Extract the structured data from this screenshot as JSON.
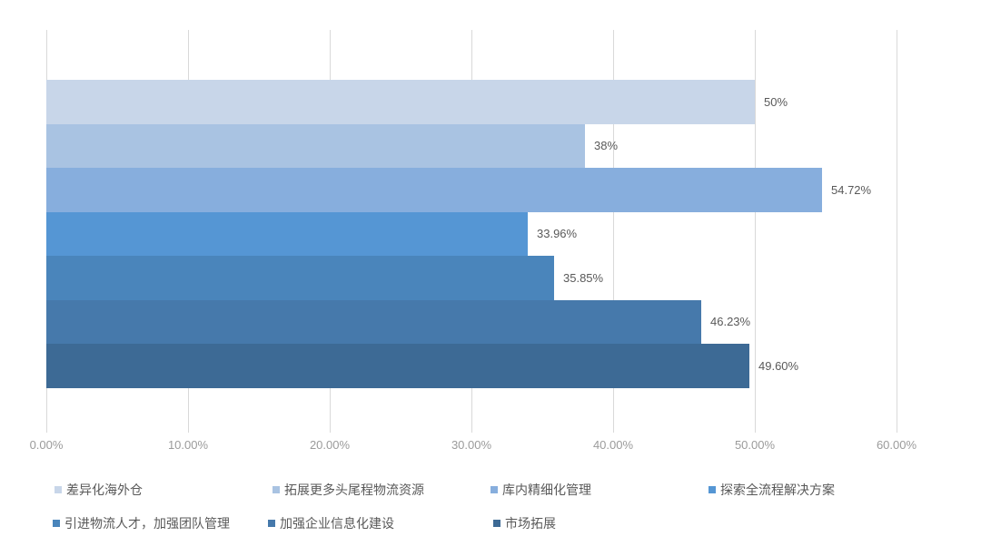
{
  "chart_data": {
    "type": "bar",
    "orientation": "horizontal",
    "title": "",
    "xlabel": "",
    "ylabel": "",
    "grid": true,
    "legend_position": "bottom",
    "series": [
      {
        "name": "差异化海外仓",
        "value": 50,
        "label": "50%",
        "color": "#c8d6e9"
      },
      {
        "name": "拓展更多头尾程物流资源",
        "value": 38,
        "label": "38%",
        "color": "#a9c3e2"
      },
      {
        "name": "库内精细化管理",
        "value": 54.72,
        "label": "54.72%",
        "color": "#87aedd"
      },
      {
        "name": "探索全流程解决方案",
        "value": 33.96,
        "label": "33.96%",
        "color": "#5596d4"
      },
      {
        "name": "引进物流人才，加强团队管理",
        "value": 35.85,
        "label": "35.85%",
        "color": "#4a85bb"
      },
      {
        "name": "加强企业信息化建设",
        "value": 46.23,
        "label": "46.23%",
        "color": "#4679ab"
      },
      {
        "name": "市场拓展",
        "value": 49.6,
        "label": "49.60%",
        "color": "#3d6a95"
      }
    ],
    "x_axis": {
      "min": 0,
      "max": 60,
      "tick_step": 10,
      "tick_labels": [
        "0.00%",
        "10.00%",
        "20.00%",
        "30.00%",
        "40.00%",
        "50.00%",
        "60.00%"
      ]
    },
    "style_colors": {
      "gridline": "#d9d9d9",
      "data_label": "#595959",
      "axis_label": "#9b9b9b",
      "legend_text": "#595959",
      "background": "#ffffff"
    }
  }
}
